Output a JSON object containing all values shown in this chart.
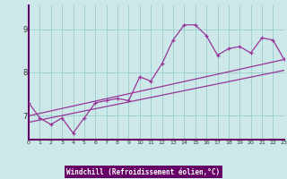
{
  "title": "",
  "xlabel": "Windchill (Refroidissement éolien,°C)",
  "ylabel": "",
  "background_color": "#cce8e8",
  "grid_color": "#99cccc",
  "line_color": "#993399",
  "axis_bar_color": "#660066",
  "x_data": [
    0,
    1,
    2,
    3,
    4,
    5,
    6,
    7,
    8,
    9,
    10,
    11,
    12,
    13,
    14,
    15,
    16,
    17,
    18,
    19,
    20,
    21,
    22,
    23
  ],
  "y_data": [
    7.3,
    6.95,
    6.8,
    6.95,
    6.6,
    6.95,
    7.3,
    7.35,
    7.4,
    7.35,
    7.9,
    7.8,
    8.2,
    8.75,
    9.1,
    9.1,
    8.85,
    8.4,
    8.55,
    8.6,
    8.45,
    8.8,
    8.75,
    8.3
  ],
  "ylim": [
    6.45,
    9.55
  ],
  "xlim": [
    0,
    23
  ],
  "yticks": [
    7,
    8,
    9
  ],
  "xticks": [
    0,
    1,
    2,
    3,
    4,
    5,
    6,
    7,
    8,
    9,
    10,
    11,
    12,
    13,
    14,
    15,
    16,
    17,
    18,
    19,
    20,
    21,
    22,
    23
  ],
  "trend1": [
    7.0,
    8.3
  ],
  "trend2": [
    6.85,
    8.05
  ]
}
